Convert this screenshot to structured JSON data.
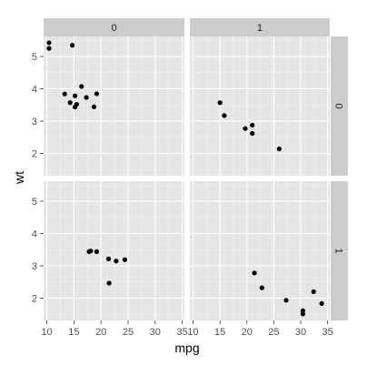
{
  "chart_data": {
    "type": "scatter",
    "xlabel": "mpg",
    "ylabel": "wt",
    "xlim": [
      9.4,
      35.4
    ],
    "ylim": [
      1.31,
      5.62
    ],
    "xticks": [
      10,
      15,
      20,
      25,
      30,
      35
    ],
    "yticks": [
      2,
      3,
      4,
      5
    ],
    "grid": true,
    "facet_cols": {
      "variable": "am",
      "levels": [
        "0",
        "1"
      ]
    },
    "facet_rows": {
      "variable": "vs",
      "levels": [
        "0",
        "1"
      ]
    },
    "colors": {
      "panel_bg": "#e5e5e5",
      "grid_major": "#ffffff",
      "grid_minor": "#f2f2f2",
      "strip_bg": "#cccccc",
      "point": "#000000",
      "tick_text": "#4d4d4d"
    },
    "panels": [
      {
        "col": "0",
        "row": "0",
        "points": [
          {
            "x": 18.7,
            "y": 3.44
          },
          {
            "x": 14.3,
            "y": 3.57
          },
          {
            "x": 16.4,
            "y": 4.07
          },
          {
            "x": 17.3,
            "y": 3.73
          },
          {
            "x": 15.2,
            "y": 3.78
          },
          {
            "x": 10.4,
            "y": 5.25
          },
          {
            "x": 10.4,
            "y": 5.424
          },
          {
            "x": 14.7,
            "y": 5.345
          },
          {
            "x": 15.5,
            "y": 3.52
          },
          {
            "x": 15.2,
            "y": 3.435
          },
          {
            "x": 13.3,
            "y": 3.84
          },
          {
            "x": 19.2,
            "y": 3.845
          }
        ]
      },
      {
        "col": "1",
        "row": "0",
        "points": [
          {
            "x": 21.0,
            "y": 2.62
          },
          {
            "x": 21.0,
            "y": 2.875
          },
          {
            "x": 26.0,
            "y": 2.14
          },
          {
            "x": 15.8,
            "y": 3.17
          },
          {
            "x": 19.7,
            "y": 2.77
          },
          {
            "x": 15.0,
            "y": 3.57
          }
        ]
      },
      {
        "col": "0",
        "row": "1",
        "points": [
          {
            "x": 21.4,
            "y": 3.215
          },
          {
            "x": 18.1,
            "y": 3.46
          },
          {
            "x": 24.4,
            "y": 3.19
          },
          {
            "x": 22.8,
            "y": 3.15
          },
          {
            "x": 19.2,
            "y": 3.44
          },
          {
            "x": 17.8,
            "y": 3.44
          },
          {
            "x": 21.5,
            "y": 2.465
          }
        ]
      },
      {
        "col": "1",
        "row": "1",
        "points": [
          {
            "x": 22.8,
            "y": 2.32
          },
          {
            "x": 32.4,
            "y": 2.2
          },
          {
            "x": 30.4,
            "y": 1.615
          },
          {
            "x": 33.9,
            "y": 1.835
          },
          {
            "x": 27.3,
            "y": 1.935
          },
          {
            "x": 30.4,
            "y": 1.513
          },
          {
            "x": 21.4,
            "y": 2.78
          }
        ]
      }
    ]
  }
}
